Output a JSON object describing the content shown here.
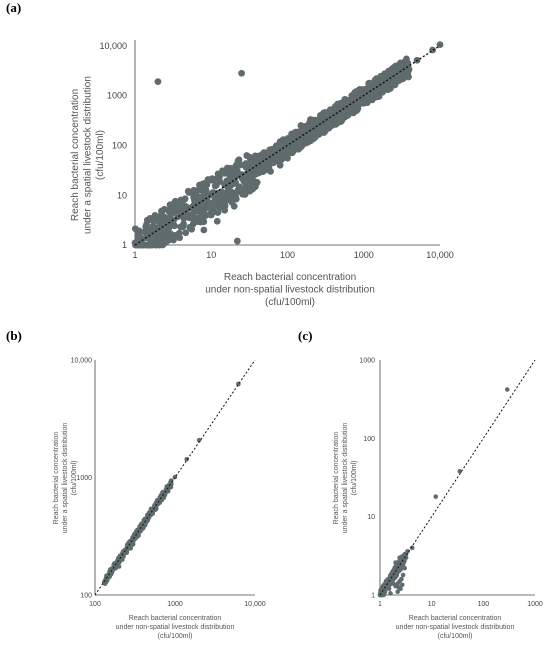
{
  "chart_data": [
    {
      "panel": "(a)",
      "type": "scatter",
      "scale": "log-log",
      "xlim": [
        1,
        10000
      ],
      "ylim": [
        1,
        13000
      ],
      "xticks": [
        "1",
        "10",
        "100",
        "1000",
        "10,000"
      ],
      "yticks": [
        "1",
        "10",
        "100",
        "1000",
        "10,000"
      ],
      "xlabel_lines": [
        "Reach bacterial concentration",
        "under non-spatial livestock distribution",
        "(cfu/100ml)"
      ],
      "ylabel_lines": [
        "Reach bacterial concentration",
        "under a spatial livestock distribution",
        "(cfu/100ml)"
      ],
      "reference_line": "y = x (dotted)",
      "color": "#5f6b6d",
      "points": [
        [
          1,
          1.1
        ],
        [
          1.4,
          1.4
        ],
        [
          1.7,
          1.6
        ],
        [
          2,
          2.1
        ],
        [
          2,
          1.2
        ],
        [
          2.2,
          1.5
        ],
        [
          2.5,
          1.4
        ],
        [
          2.1,
          1.9
        ],
        [
          1.9,
          2.2
        ],
        [
          2.4,
          2.6
        ],
        [
          2.8,
          3
        ],
        [
          3.2,
          3.1
        ],
        [
          3.8,
          4
        ],
        [
          4.5,
          4.2
        ],
        [
          5,
          5.4
        ],
        [
          6,
          6.2
        ],
        [
          7,
          7.4
        ],
        [
          8,
          8
        ],
        [
          10,
          10.5
        ],
        [
          12,
          11
        ],
        [
          12,
          20
        ],
        [
          15,
          16
        ],
        [
          18,
          20
        ],
        [
          20,
          18
        ],
        [
          25,
          26
        ],
        [
          30,
          28
        ],
        [
          35,
          36
        ],
        [
          40,
          42
        ],
        [
          50,
          48
        ],
        [
          60,
          62
        ],
        [
          70,
          66
        ],
        [
          80,
          85
        ],
        [
          100,
          100
        ],
        [
          120,
          126
        ],
        [
          150,
          145
        ],
        [
          200,
          206
        ],
        [
          250,
          260
        ],
        [
          300,
          290
        ],
        [
          400,
          410
        ],
        [
          500,
          480
        ],
        [
          600,
          620
        ],
        [
          800,
          790
        ],
        [
          1000,
          1050
        ],
        [
          1500,
          1480
        ],
        [
          2000,
          2100
        ],
        [
          3000,
          3050
        ],
        [
          5000,
          5100
        ],
        [
          8000,
          8200
        ],
        [
          10000,
          10500
        ],
        [
          2,
          1900
        ],
        [
          25,
          2800
        ],
        [
          22,
          1.2
        ],
        [
          8,
          2
        ],
        [
          10,
          4
        ],
        [
          12,
          3
        ],
        [
          15,
          5
        ],
        [
          20,
          6
        ],
        [
          7,
          16
        ],
        [
          10,
          20
        ],
        [
          5,
          12
        ],
        [
          8,
          14
        ],
        [
          30,
          14
        ],
        [
          40,
          18
        ],
        [
          60,
          30
        ],
        [
          80,
          40
        ],
        [
          100,
          55
        ],
        [
          200,
          130
        ],
        [
          300,
          180
        ],
        [
          500,
          300
        ],
        [
          800,
          650
        ],
        [
          150,
          250
        ],
        [
          200,
          330
        ],
        [
          300,
          450
        ],
        [
          500,
          700
        ],
        [
          1000,
          700
        ],
        [
          1500,
          1100
        ],
        [
          3,
          6
        ],
        [
          4,
          8
        ],
        [
          2.5,
          1.8
        ],
        [
          3,
          2.5
        ]
      ]
    },
    {
      "panel": "(b)",
      "type": "scatter",
      "scale": "log-log",
      "xlim": [
        100,
        10000
      ],
      "ylim": [
        100,
        10000
      ],
      "xticks": [
        "100",
        "1000",
        "10,000"
      ],
      "yticks": [
        "100",
        "1000",
        "10,000"
      ],
      "xlabel_lines": [
        "Reach bacterial concentration",
        "under non-spatial livestock distribution",
        "(cfu/100ml)"
      ],
      "ylabel_lines": [
        "Reach bacterial concentration",
        "under a spatial livestock distribution",
        "(cfu/100ml)"
      ],
      "reference_line": "y = x (dotted)",
      "color": "#5f6b6d",
      "points": [
        [
          130,
          128
        ],
        [
          140,
          142
        ],
        [
          150,
          146
        ],
        [
          160,
          165
        ],
        [
          170,
          168
        ],
        [
          180,
          178
        ],
        [
          190,
          195
        ],
        [
          200,
          198
        ],
        [
          210,
          205
        ],
        [
          220,
          226
        ],
        [
          240,
          235
        ],
        [
          250,
          255
        ],
        [
          260,
          258
        ],
        [
          280,
          275
        ],
        [
          300,
          305
        ],
        [
          320,
          315
        ],
        [
          340,
          350
        ],
        [
          360,
          355
        ],
        [
          380,
          372
        ],
        [
          400,
          410
        ],
        [
          420,
          415
        ],
        [
          450,
          440
        ],
        [
          480,
          492
        ],
        [
          500,
          505
        ],
        [
          520,
          510
        ],
        [
          550,
          560
        ],
        [
          580,
          570
        ],
        [
          600,
          612
        ],
        [
          640,
          628
        ],
        [
          680,
          690
        ],
        [
          700,
          695
        ],
        [
          750,
          740
        ],
        [
          800,
          815
        ],
        [
          850,
          860
        ],
        [
          900,
          880
        ],
        [
          1000,
          1010
        ],
        [
          1400,
          1430
        ],
        [
          2000,
          2080
        ],
        [
          6200,
          6250
        ],
        [
          250,
          230
        ],
        [
          300,
          270
        ],
        [
          350,
          320
        ],
        [
          400,
          370
        ],
        [
          220,
          200
        ],
        [
          450,
          480
        ],
        [
          500,
          540
        ],
        [
          600,
          640
        ],
        [
          700,
          750
        ],
        [
          200,
          175
        ],
        [
          280,
          250
        ]
      ]
    },
    {
      "panel": "(c)",
      "type": "scatter",
      "scale": "log-log",
      "xlim": [
        1,
        1000
      ],
      "ylim": [
        1,
        1000
      ],
      "xticks": [
        "1",
        "10",
        "100",
        "1000"
      ],
      "yticks": [
        "1",
        "10",
        "100",
        "1000"
      ],
      "xlabel_lines": [
        "Reach bacterial concentration",
        "under non-spatial livestock distribution",
        "(cfu/100ml)"
      ],
      "ylabel_lines": [
        "Reach bacterial concentration",
        "under a spatial livestock distribution",
        "(cfu/100ml)"
      ],
      "reference_line": "y = x (dotted)",
      "color": "#5f6b6d",
      "points": [
        [
          1.1,
          1.1
        ],
        [
          1.2,
          1.15
        ],
        [
          1.3,
          1.4
        ],
        [
          1.4,
          1.3
        ],
        [
          1.5,
          1.6
        ],
        [
          1.6,
          1.5
        ],
        [
          1.7,
          1.9
        ],
        [
          1.8,
          1.7
        ],
        [
          1.9,
          2.1
        ],
        [
          2,
          1.8
        ],
        [
          2.1,
          2.4
        ],
        [
          2.2,
          2.0
        ],
        [
          2.3,
          2.6
        ],
        [
          2.4,
          2.2
        ],
        [
          2.5,
          2.9
        ],
        [
          2.6,
          2.4
        ],
        [
          2.7,
          3.1
        ],
        [
          2.8,
          2.6
        ],
        [
          3.0,
          3.3
        ],
        [
          3.2,
          3.0
        ],
        [
          2.0,
          1.3
        ],
        [
          2.2,
          1.4
        ],
        [
          2.4,
          1.5
        ],
        [
          2.5,
          1.2
        ],
        [
          2.6,
          1.6
        ],
        [
          2.8,
          1.8
        ],
        [
          3.0,
          2.2
        ],
        [
          2.2,
          1.1
        ],
        [
          2.3,
          1.25
        ],
        [
          1.5,
          1.2
        ],
        [
          1.8,
          1.4
        ],
        [
          2.0,
          2.6
        ],
        [
          2.4,
          3.0
        ],
        [
          3.4,
          3.6
        ],
        [
          4.2,
          4.0
        ],
        [
          12,
          18
        ],
        [
          35,
          38
        ],
        [
          290,
          420
        ],
        [
          1.6,
          1.05
        ],
        [
          2.7,
          1.35
        ]
      ]
    }
  ]
}
